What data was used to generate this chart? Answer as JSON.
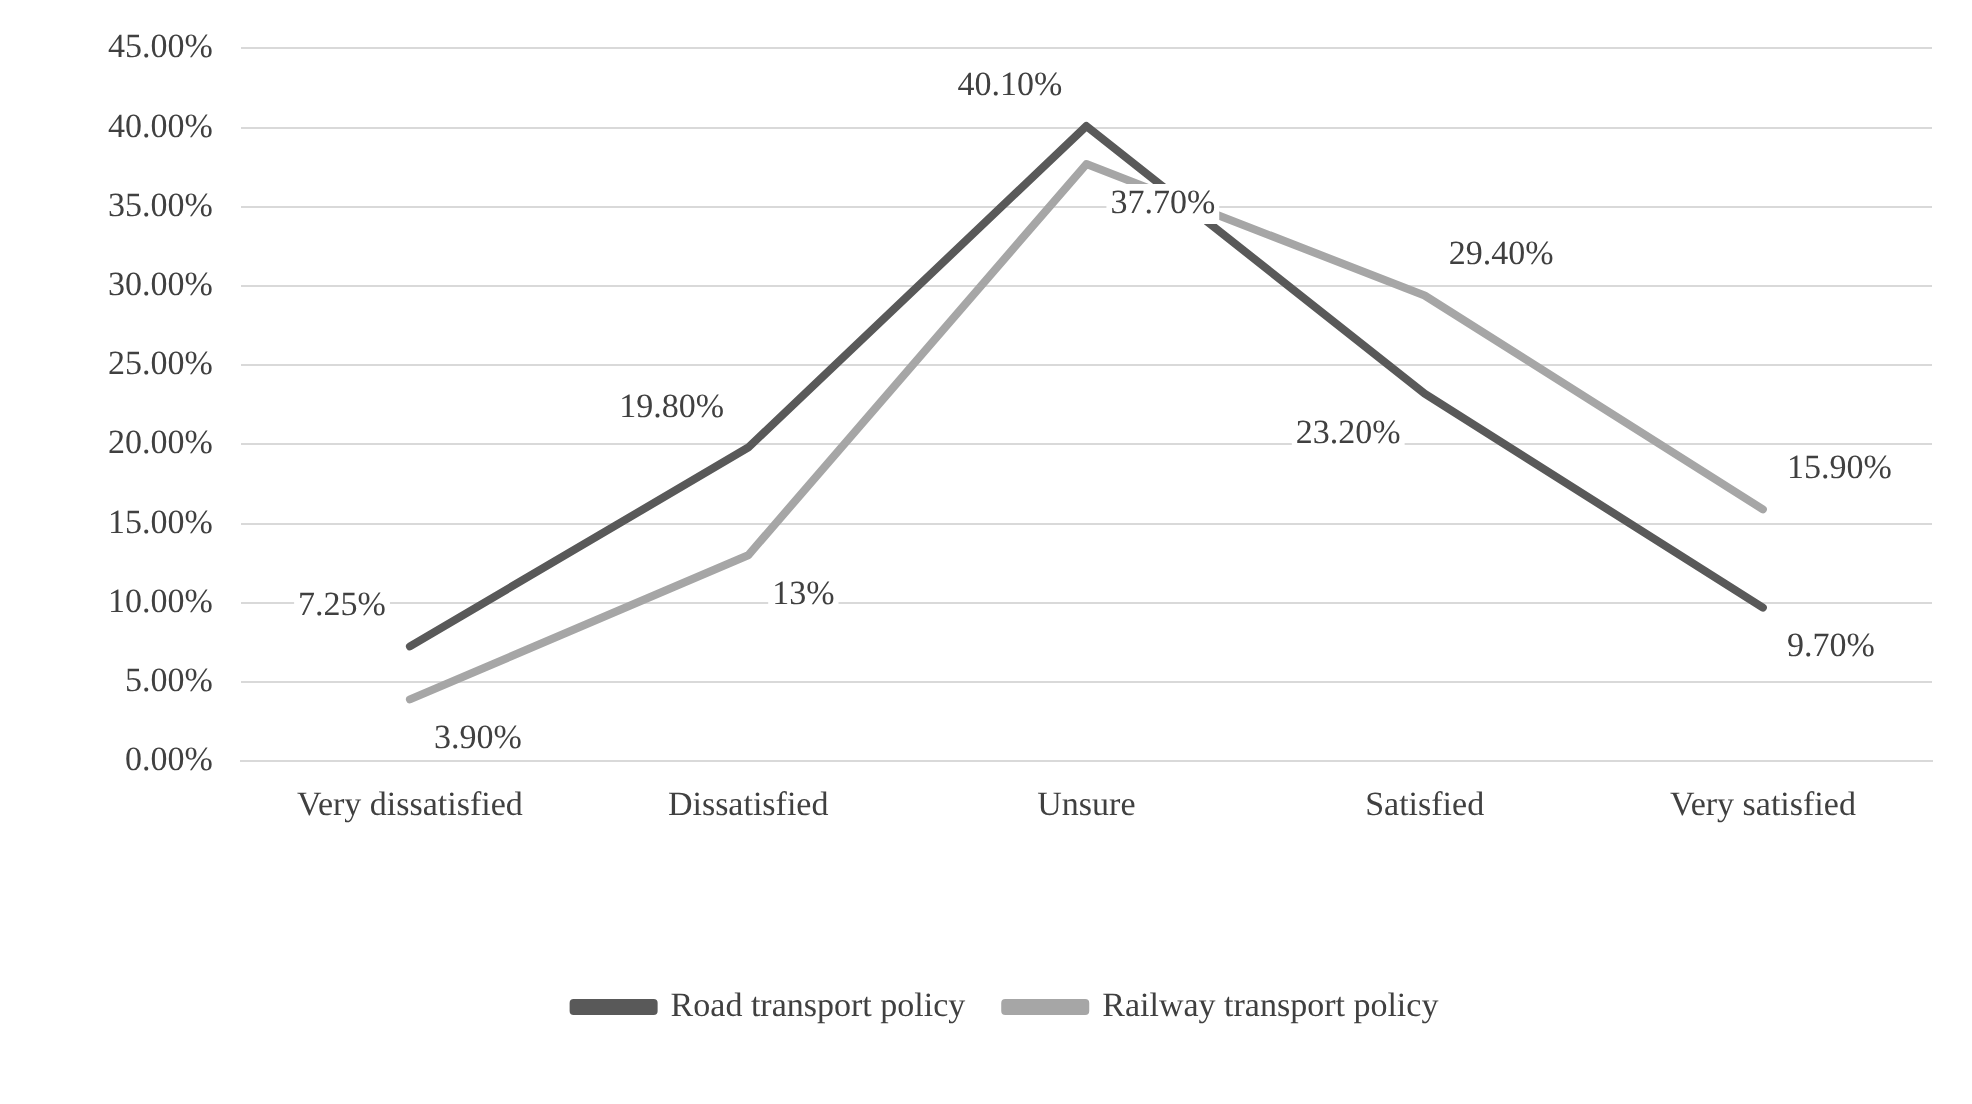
{
  "chart_data": {
    "type": "line",
    "categories": [
      "Very dissatisfied",
      "Dissatisfied",
      "Unsure",
      "Satisfied",
      "Very satisfied"
    ],
    "series": [
      {
        "name": "Road transport policy",
        "color": "#595959",
        "values": [
          7.25,
          19.8,
          40.1,
          23.2,
          9.7
        ],
        "value_labels": [
          "7.25%",
          "19.80%",
          "40.10%",
          "23.20%",
          "9.70%"
        ]
      },
      {
        "name": "Railway transport policy",
        "color": "#a6a6a6",
        "values": [
          3.9,
          13,
          37.7,
          29.4,
          15.9
        ],
        "value_labels": [
          "3.90%",
          "13%",
          "37.70%",
          "29.40%",
          "15.90%"
        ]
      }
    ],
    "ylim": [
      0,
      45
    ],
    "yticks": [
      {
        "value": 0,
        "label": "0.00%"
      },
      {
        "value": 5,
        "label": "5.00%"
      },
      {
        "value": 10,
        "label": "10.00%"
      },
      {
        "value": 15,
        "label": "15.00%"
      },
      {
        "value": 20,
        "label": "20.00%"
      },
      {
        "value": 25,
        "label": "25.00%"
      },
      {
        "value": 30,
        "label": "30.00%"
      },
      {
        "value": 35,
        "label": "35.00%"
      },
      {
        "value": 40,
        "label": "40.00%"
      },
      {
        "value": 45,
        "label": "45.00%"
      }
    ],
    "grid": "y",
    "legend": "bottom",
    "marker": "none",
    "line_style": "solid"
  }
}
